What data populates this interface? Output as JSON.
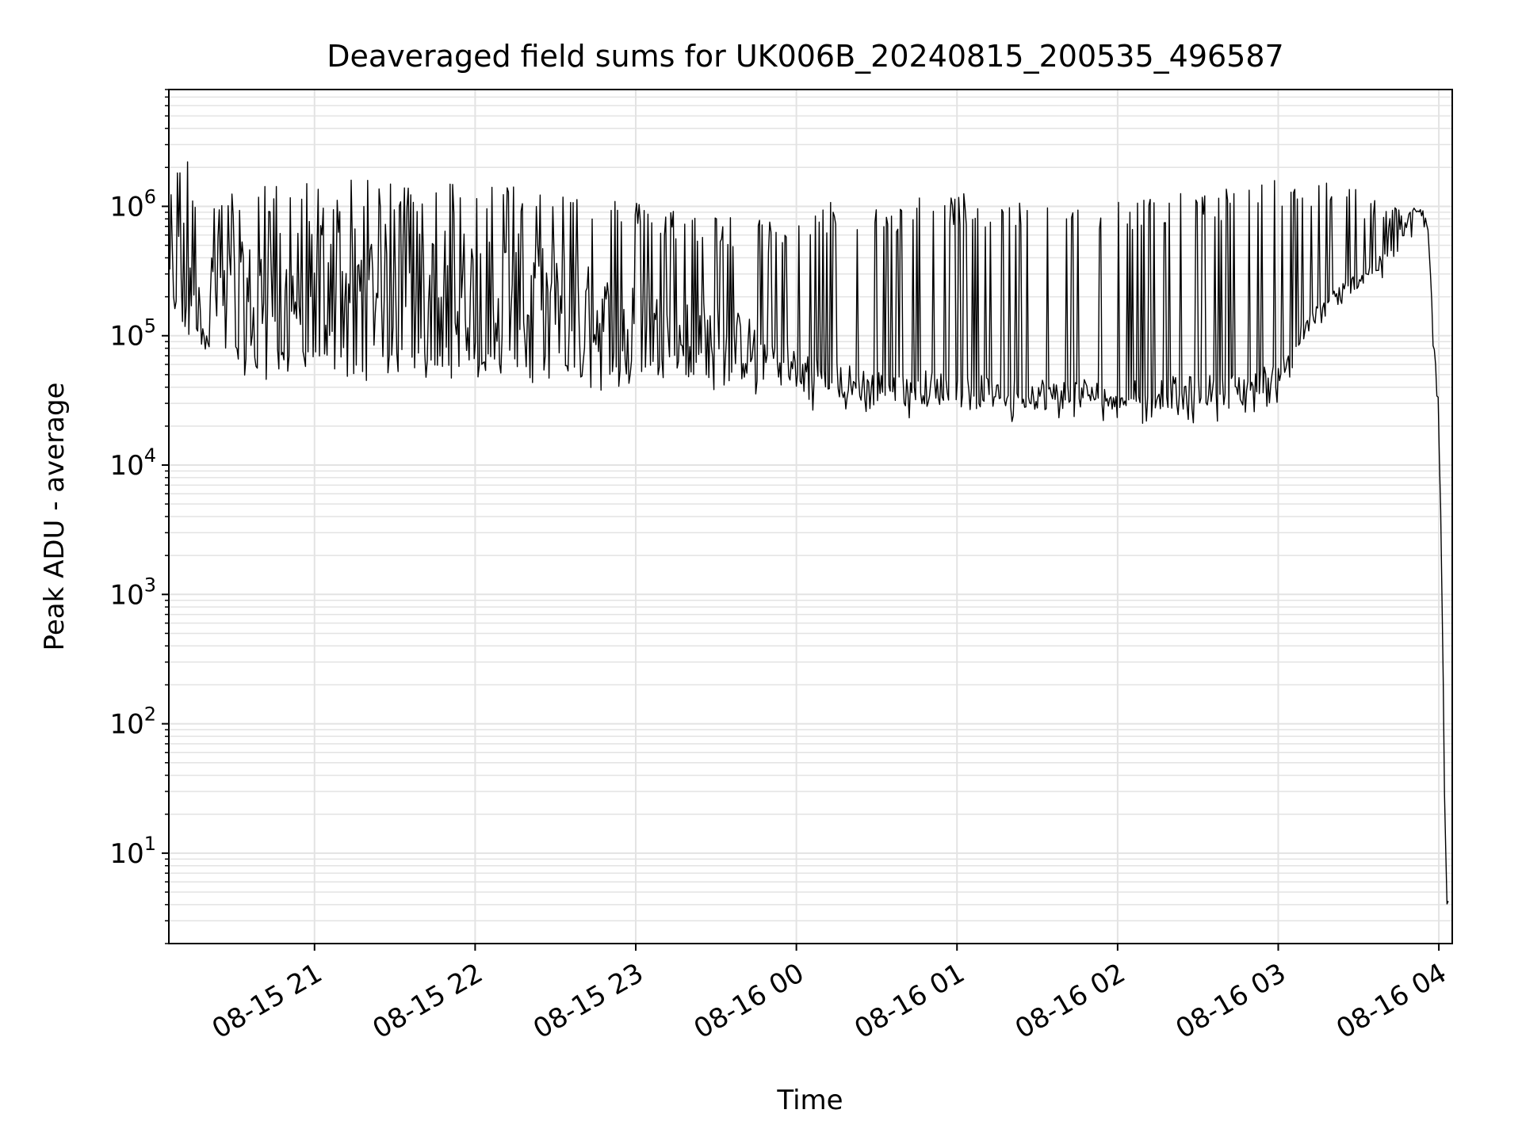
{
  "chart_data": {
    "type": "line",
    "title": "Deaveraged field sums for UK006B_20240815_200535_496587",
    "xlabel": "Time",
    "ylabel": "Peak ADU - average",
    "yscale": "log",
    "xlim": [
      "2024-08-15 20:05:35",
      "2024-08-16 04:05:00"
    ],
    "ylim": [
      2,
      8000000
    ],
    "grid": true,
    "line_color": "#000000",
    "grid_color": "#e3e3e3",
    "x_ticks": [
      {
        "value": "2024-08-15 21:00",
        "label": "08-15 21"
      },
      {
        "value": "2024-08-15 22:00",
        "label": "08-15 22"
      },
      {
        "value": "2024-08-15 23:00",
        "label": "08-15 23"
      },
      {
        "value": "2024-08-16 00:00",
        "label": "08-16 00"
      },
      {
        "value": "2024-08-16 01:00",
        "label": "08-16 01"
      },
      {
        "value": "2024-08-16 02:00",
        "label": "08-16 02"
      },
      {
        "value": "2024-08-16 03:00",
        "label": "08-16 03"
      },
      {
        "value": "2024-08-16 04:00",
        "label": "08-16 04"
      }
    ],
    "y_ticks": [
      {
        "value": 10,
        "base": "10",
        "exp": "1"
      },
      {
        "value": 100,
        "base": "10",
        "exp": "2"
      },
      {
        "value": 1000,
        "base": "10",
        "exp": "3"
      },
      {
        "value": 10000,
        "base": "10",
        "exp": "4"
      },
      {
        "value": 100000,
        "base": "10",
        "exp": "5"
      },
      {
        "value": 1000000,
        "base": "10",
        "exp": "6"
      }
    ],
    "series": [
      {
        "x": [
          "2024-08-15 20:05",
          "2024-08-15 20:10",
          "2024-08-15 20:15",
          "2024-08-15 20:20",
          "2024-08-15 20:25",
          "2024-08-15 20:30",
          "2024-08-15 20:40",
          "2024-08-15 20:50",
          "2024-08-15 21:00",
          "2024-08-15 21:15",
          "2024-08-15 21:30",
          "2024-08-15 21:45",
          "2024-08-15 22:00",
          "2024-08-15 22:15",
          "2024-08-15 22:30",
          "2024-08-15 22:45",
          "2024-08-15 23:00",
          "2024-08-15 23:15",
          "2024-08-15 23:30",
          "2024-08-15 23:45",
          "2024-08-16 00:00",
          "2024-08-16 00:15",
          "2024-08-16 00:30",
          "2024-08-16 00:45",
          "2024-08-16 01:00",
          "2024-08-16 01:15",
          "2024-08-16 01:30",
          "2024-08-16 01:45",
          "2024-08-16 02:00",
          "2024-08-16 02:15",
          "2024-08-16 02:30",
          "2024-08-16 02:45",
          "2024-08-16 03:00",
          "2024-08-16 03:10",
          "2024-08-16 03:20",
          "2024-08-16 03:30",
          "2024-08-16 03:40",
          "2024-08-16 03:45",
          "2024-08-16 03:50",
          "2024-08-16 03:53",
          "2024-08-16 03:56",
          "2024-08-16 03:58",
          "2024-08-16 04:00",
          "2024-08-16 04:01",
          "2024-08-16 04:02",
          "2024-08-16 04:03",
          "2024-08-16 04:04"
        ],
        "y": [
          500000,
          700000,
          1500000,
          400000,
          600000,
          450000,
          500000,
          600000,
          700000,
          700000,
          650000,
          600000,
          650000,
          550000,
          400000,
          300000,
          220000,
          180000,
          160000,
          120000,
          80000,
          55000,
          48000,
          48000,
          45000,
          42000,
          42000,
          42000,
          42000,
          42000,
          43000,
          45000,
          55000,
          120000,
          200000,
          280000,
          380000,
          500000,
          850000,
          900000,
          700000,
          100000,
          30000,
          2000,
          60,
          4,
          4
        ],
        "y_lower": [
          80000,
          150000,
          80000,
          100000,
          70000,
          70000,
          60000,
          65000,
          60000,
          60000,
          60000,
          60000,
          60000,
          55000,
          52000,
          50000,
          48000,
          47000,
          46000,
          42000,
          38000,
          32000,
          30000,
          30000,
          28000,
          27000,
          27000,
          27000,
          27000,
          27000,
          28000,
          30000,
          40000,
          90000,
          160000,
          240000,
          330000,
          450000,
          800000,
          850000,
          650000,
          90000,
          28000,
          1800,
          55,
          4,
          4
        ],
        "y_upper": [
          1000000,
          2500000,
          4000000,
          1200000,
          1200000,
          1300000,
          1500000,
          1500000,
          1600000,
          1600000,
          1600000,
          1600000,
          1600000,
          1500000,
          1400000,
          1300000,
          1100000,
          1000000,
          900000,
          800000,
          700000,
          1200000,
          1000000,
          1200000,
          1300000,
          1200000,
          1100000,
          1200000,
          1200000,
          1200000,
          1300000,
          1500000,
          1600000,
          1700000,
          1700000,
          1400000,
          1100000,
          1000000,
          950000,
          950000,
          800000,
          110000,
          32000,
          2200,
          65,
          4,
          4
        ]
      }
    ]
  }
}
